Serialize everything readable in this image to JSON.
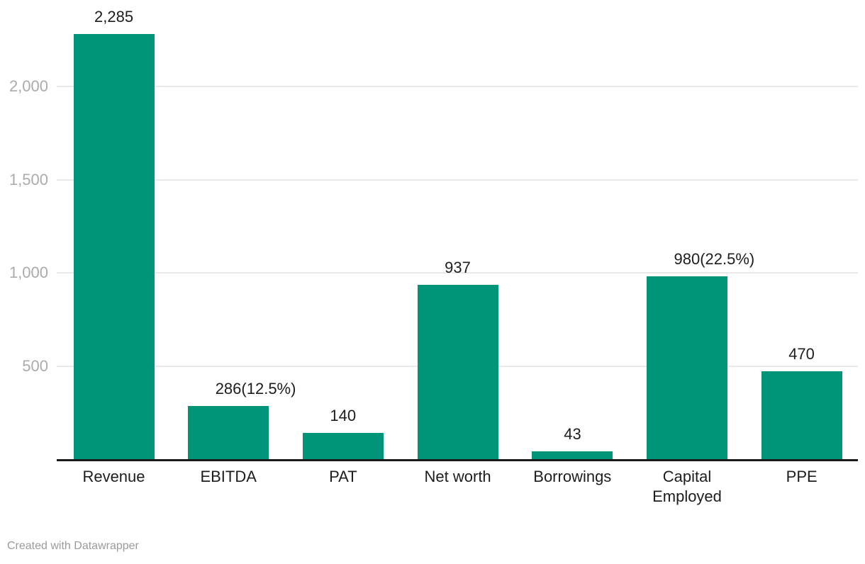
{
  "footer": {
    "credit": "Created with Datawrapper"
  },
  "colors": {
    "background": "#ffffff",
    "bar": "#009478",
    "axis_line": "#1a1a1a",
    "gridline": "#e9e9e9",
    "tick_label": "#ababab",
    "value_label": "#1d1d1d",
    "category_label": "#1d1d1d",
    "credit": "#9b9b9b"
  },
  "chart_data": {
    "type": "bar",
    "title": "",
    "xlabel": "",
    "ylabel": "",
    "grid": true,
    "legend": "none",
    "categories": [
      "Revenue",
      "EBITDA",
      "PAT",
      "Net worth",
      "Borrowings",
      "Capital Employed",
      "PPE"
    ],
    "values": [
      2285,
      286,
      140,
      937,
      43,
      980,
      470
    ],
    "value_labels": [
      {
        "text": "2,285",
        "suffix": ""
      },
      {
        "text": "286",
        "suffix": "(12.5%)"
      },
      {
        "text": "140",
        "suffix": ""
      },
      {
        "text": "937",
        "suffix": ""
      },
      {
        "text": "43",
        "suffix": ""
      },
      {
        "text": "980",
        "suffix": "(22.5%)"
      },
      {
        "text": "470",
        "suffix": ""
      }
    ],
    "y_axis": {
      "ticks": [
        {
          "value": 500,
          "label": "500"
        },
        {
          "value": 1000,
          "label": "1,000"
        },
        {
          "value": 1500,
          "label": "1,500"
        },
        {
          "value": 2000,
          "label": "2,000"
        }
      ]
    },
    "ylim": [
      0,
      2466
    ]
  }
}
